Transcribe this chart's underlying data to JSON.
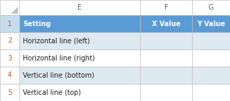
{
  "col_labels": [
    "E",
    "F",
    "G"
  ],
  "header_row": [
    "Setting",
    "X Value",
    "Y Value"
  ],
  "data_rows": [
    [
      "Horizontal line (left)",
      "",
      ""
    ],
    [
      "Horizontal line (right)",
      "",
      ""
    ],
    [
      "Vertical line (bottom)",
      "",
      ""
    ],
    [
      "Vertical line (top)",
      "",
      ""
    ]
  ],
  "header_bg": "#5B9BD5",
  "header_text_color": "#FFFFFF",
  "row_label_color": "#C55A11",
  "row_bg_even": "#DEEAF1",
  "row_bg_odd": "#FFFFFF",
  "data_text_color": "#1F1F1F",
  "col_label_bg": "#FFFFFF",
  "col_label_text": "#595959",
  "corner_bg": "#FFFFFF",
  "border_color": "#BFBFBF",
  "row_num_bg_header": "#C5DCF0",
  "row_num_bg_data": "#FFFFFF",
  "font_size": 7.0,
  "col_label_font_size": 7.0
}
